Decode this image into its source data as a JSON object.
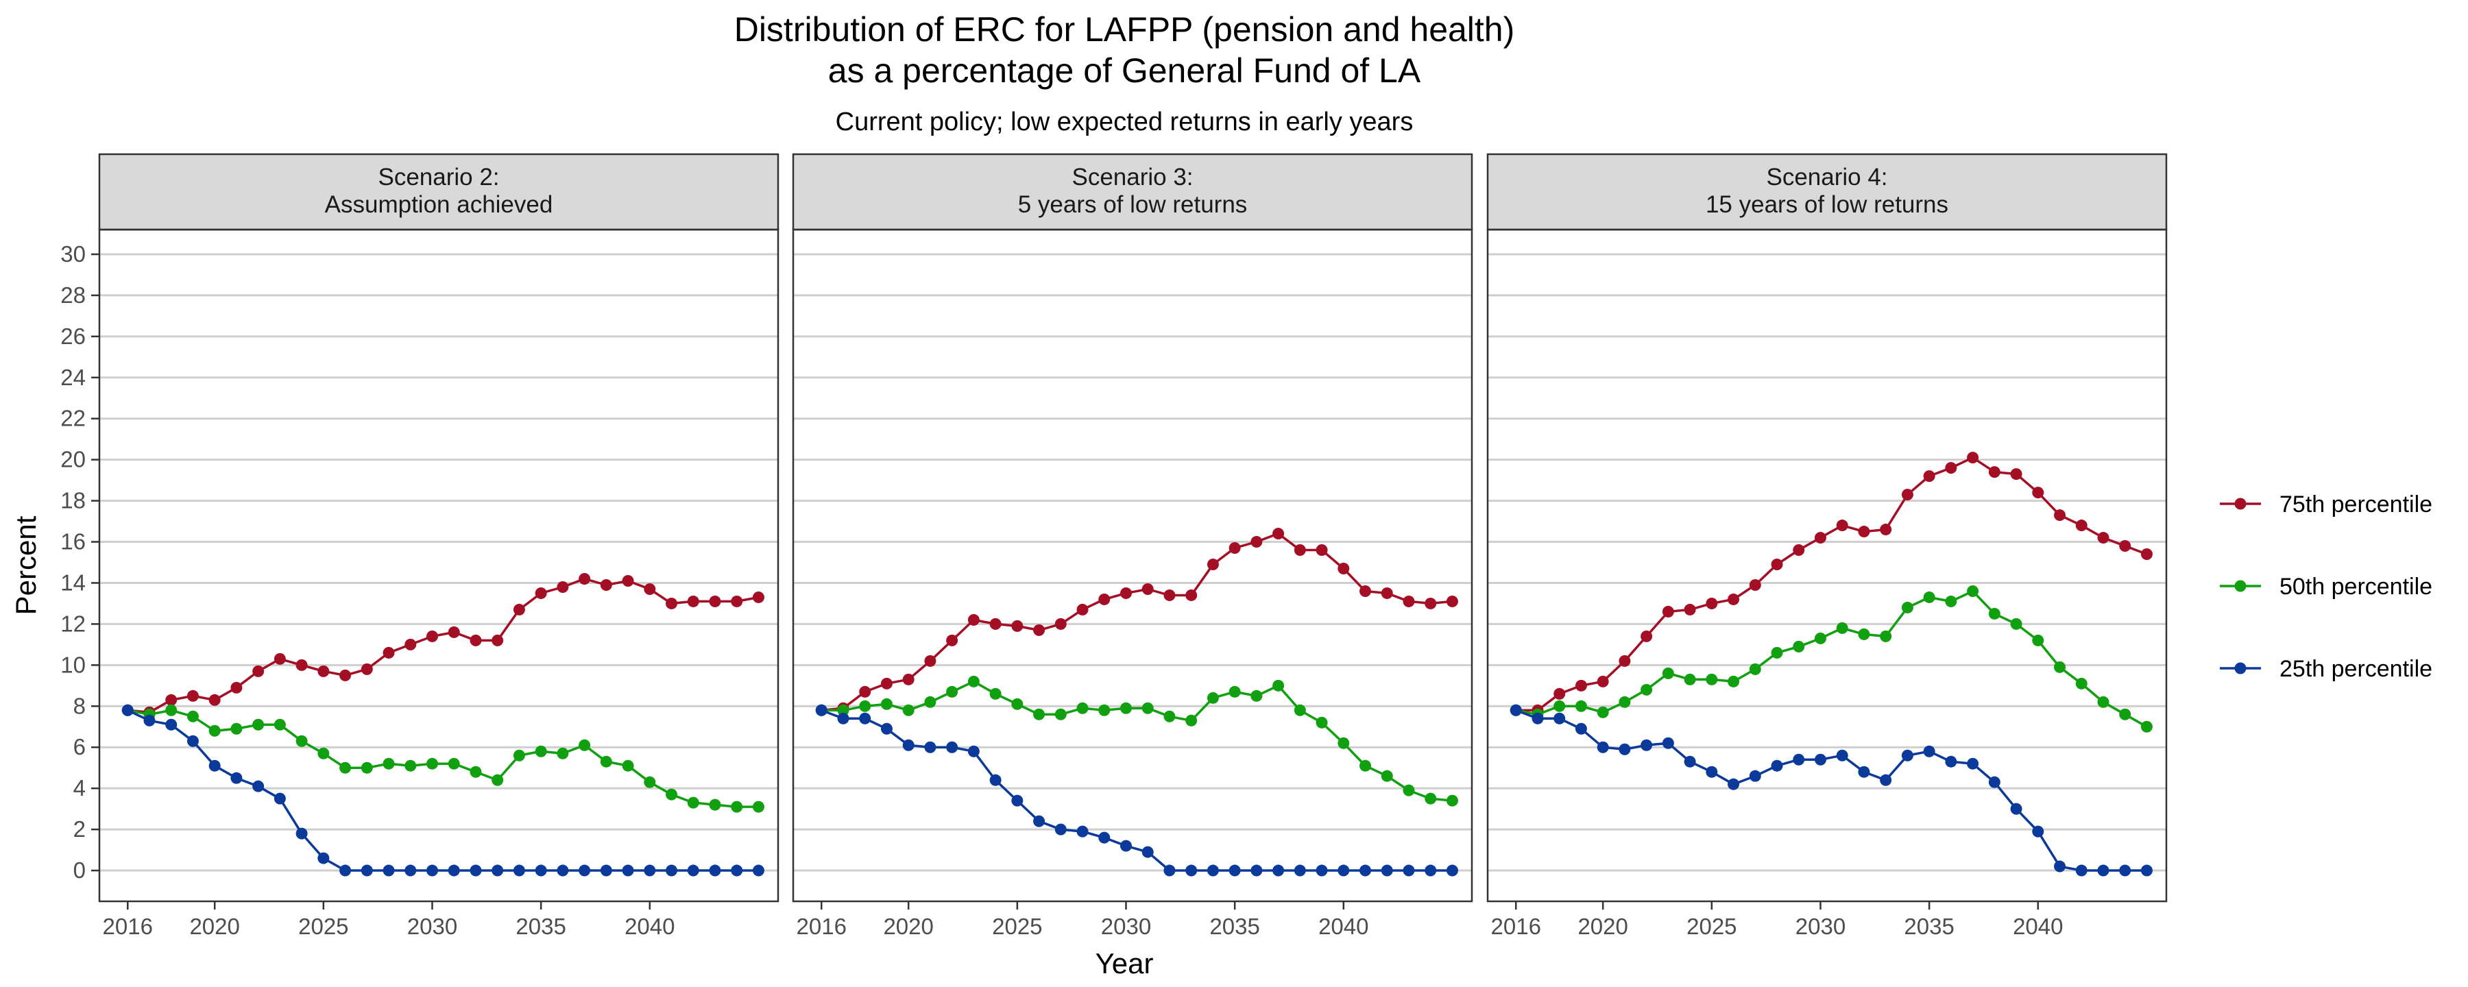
{
  "chart_data": {
    "type": "line",
    "title_lines": [
      "Distribution of ERC for LAFPP (pension and health)",
      "as a percentage of General Fund of LA"
    ],
    "subtitle": "Current policy; low expected returns in early years",
    "xlabel": "Year",
    "ylabel": "Percent",
    "xlim": [
      2016,
      2045
    ],
    "ylim": [
      0,
      30
    ],
    "x_ticks": [
      2016,
      2020,
      2025,
      2030,
      2035,
      2040
    ],
    "y_ticks": [
      0,
      2,
      4,
      6,
      8,
      10,
      12,
      14,
      16,
      18,
      20,
      22,
      24,
      26,
      28,
      30
    ],
    "grid": "horizontal",
    "legend_position": "right",
    "legend": [
      {
        "name": "75th percentile",
        "color": "#a50f26"
      },
      {
        "name": "50th percentile",
        "color": "#10a010"
      },
      {
        "name": "25th percentile",
        "color": "#0b3a9b"
      }
    ],
    "x": [
      2016,
      2017,
      2018,
      2019,
      2020,
      2021,
      2022,
      2023,
      2024,
      2025,
      2026,
      2027,
      2028,
      2029,
      2030,
      2031,
      2032,
      2033,
      2034,
      2035,
      2036,
      2037,
      2038,
      2039,
      2040,
      2041,
      2042,
      2043,
      2044,
      2045
    ],
    "panels": [
      {
        "strip_lines": [
          "Scenario 2:",
          "Assumption achieved"
        ],
        "series": [
          {
            "name": "75th percentile",
            "values": [
              7.8,
              7.7,
              8.3,
              8.5,
              8.3,
              8.9,
              9.7,
              10.3,
              10.0,
              9.7,
              9.5,
              9.8,
              10.6,
              11.0,
              11.4,
              11.6,
              11.2,
              11.2,
              12.7,
              13.5,
              13.8,
              14.2,
              13.9,
              14.1,
              13.7,
              13.0,
              13.1,
              13.1,
              13.1,
              13.3
            ]
          },
          {
            "name": "50th percentile",
            "values": [
              7.8,
              7.6,
              7.8,
              7.5,
              6.8,
              6.9,
              7.1,
              7.1,
              6.3,
              5.7,
              5.0,
              5.0,
              5.2,
              5.1,
              5.2,
              5.2,
              4.8,
              4.4,
              5.6,
              5.8,
              5.7,
              6.1,
              5.3,
              5.1,
              4.3,
              3.7,
              3.3,
              3.2,
              3.1,
              3.1
            ]
          },
          {
            "name": "25th percentile",
            "values": [
              7.8,
              7.3,
              7.1,
              6.3,
              5.1,
              4.5,
              4.1,
              3.5,
              1.8,
              0.6,
              0,
              0,
              0,
              0,
              0,
              0,
              0,
              0,
              0,
              0,
              0,
              0,
              0,
              0,
              0,
              0,
              0,
              0,
              0,
              0
            ]
          }
        ]
      },
      {
        "strip_lines": [
          "Scenario 3:",
          "5 years of low returns"
        ],
        "series": [
          {
            "name": "75th percentile",
            "values": [
              7.8,
              7.9,
              8.7,
              9.1,
              9.3,
              10.2,
              11.2,
              12.2,
              12.0,
              11.9,
              11.7,
              12.0,
              12.7,
              13.2,
              13.5,
              13.7,
              13.4,
              13.4,
              14.9,
              15.7,
              16.0,
              16.4,
              15.6,
              15.6,
              14.7,
              13.6,
              13.5,
              13.1,
              13.0,
              13.1
            ]
          },
          {
            "name": "50th percentile",
            "values": [
              7.8,
              7.8,
              8.0,
              8.1,
              7.8,
              8.2,
              8.7,
              9.2,
              8.6,
              8.1,
              7.6,
              7.6,
              7.9,
              7.8,
              7.9,
              7.9,
              7.5,
              7.3,
              8.4,
              8.7,
              8.5,
              9.0,
              7.8,
              7.2,
              6.2,
              5.1,
              4.6,
              3.9,
              3.5,
              3.4
            ]
          },
          {
            "name": "25th percentile",
            "values": [
              7.8,
              7.4,
              7.4,
              6.9,
              6.1,
              6.0,
              6.0,
              5.8,
              4.4,
              3.4,
              2.4,
              2.0,
              1.9,
              1.6,
              1.2,
              0.9,
              0,
              0,
              0,
              0,
              0,
              0,
              0,
              0,
              0,
              0,
              0,
              0,
              0,
              0
            ]
          }
        ]
      },
      {
        "strip_lines": [
          "Scenario 4:",
          "15 years of low returns"
        ],
        "series": [
          {
            "name": "75th percentile",
            "values": [
              7.8,
              7.8,
              8.6,
              9.0,
              9.2,
              10.2,
              11.4,
              12.6,
              12.7,
              13.0,
              13.2,
              13.9,
              14.9,
              15.6,
              16.2,
              16.8,
              16.5,
              16.6,
              18.3,
              19.2,
              19.6,
              20.1,
              19.4,
              19.3,
              18.4,
              17.3,
              16.8,
              16.2,
              15.8,
              15.4
            ]
          },
          {
            "name": "50th percentile",
            "values": [
              7.8,
              7.6,
              8.0,
              8.0,
              7.7,
              8.2,
              8.8,
              9.6,
              9.3,
              9.3,
              9.2,
              9.8,
              10.6,
              10.9,
              11.3,
              11.8,
              11.5,
              11.4,
              12.8,
              13.3,
              13.1,
              13.6,
              12.5,
              12.0,
              11.2,
              9.9,
              9.1,
              8.2,
              7.6,
              7.0
            ]
          },
          {
            "name": "25th percentile",
            "values": [
              7.8,
              7.4,
              7.4,
              6.9,
              6.0,
              5.9,
              6.1,
              6.2,
              5.3,
              4.8,
              4.2,
              4.6,
              5.1,
              5.4,
              5.4,
              5.6,
              4.8,
              4.4,
              5.6,
              5.8,
              5.3,
              5.2,
              4.3,
              3.0,
              1.9,
              0.2,
              0,
              0,
              0,
              0
            ]
          }
        ]
      }
    ]
  }
}
